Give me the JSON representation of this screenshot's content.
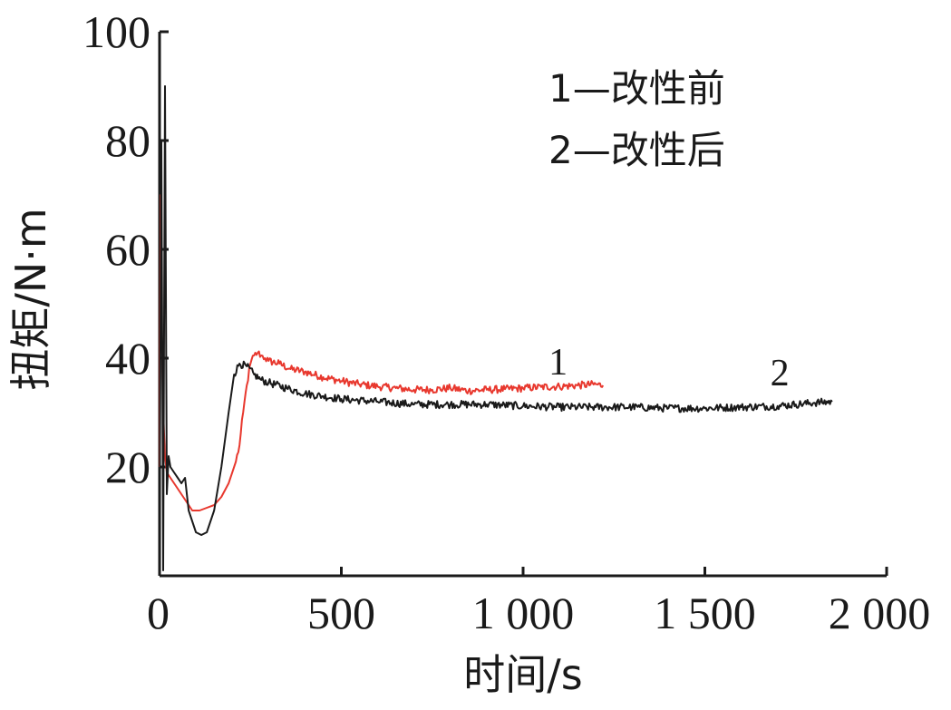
{
  "chart_data": {
    "type": "line",
    "title": "",
    "xlabel": "时间/s",
    "ylabel": "扭矩/N·m",
    "xlim": [
      0,
      2000
    ],
    "ylim": [
      0,
      100
    ],
    "x_ticks": [
      0,
      500,
      1000,
      1500,
      2000
    ],
    "x_tick_labels": [
      "0",
      "500",
      "1 000",
      "1 500",
      "2 000"
    ],
    "y_ticks": [
      20,
      40,
      60,
      80,
      100
    ],
    "y_tick_labels": [
      "20",
      "40",
      "60",
      "80",
      "100"
    ],
    "grid": false,
    "legend": {
      "position": "top-right",
      "entries": [
        "1—改性前",
        "2—改性后"
      ]
    },
    "series": [
      {
        "label": "1",
        "color": "#e8382e",
        "label_at": [
          1070,
          37
        ],
        "x": [
          0,
          3,
          6,
          10,
          15,
          20,
          30,
          50,
          70,
          90,
          110,
          130,
          150,
          170,
          190,
          210,
          220,
          230,
          240,
          250,
          260,
          270,
          280,
          290,
          300,
          330,
          360,
          400,
          450,
          500,
          550,
          600,
          650,
          700,
          750,
          800,
          850,
          900,
          950,
          1000,
          1050,
          1100,
          1150,
          1200,
          1220
        ],
        "y": [
          20,
          70,
          45,
          30,
          22,
          19,
          18,
          16,
          14,
          12,
          12,
          12.5,
          13,
          14.5,
          17,
          21,
          24,
          30,
          35,
          39,
          40.5,
          41,
          40.5,
          40,
          39.5,
          39,
          38,
          37.5,
          36.5,
          35.8,
          35.2,
          34.8,
          34.5,
          34.2,
          34.2,
          34.5,
          34,
          34.2,
          34.3,
          34.5,
          34.7,
          34.8,
          35,
          35.2,
          35
        ]
      },
      {
        "label": "2",
        "color": "#1a1a1a",
        "label_at": [
          1680,
          35
        ],
        "x": [
          0,
          5,
          10,
          15,
          20,
          25,
          30,
          40,
          50,
          60,
          70,
          80,
          90,
          100,
          115,
          130,
          150,
          170,
          190,
          205,
          220,
          240,
          260,
          280,
          300,
          350,
          400,
          450,
          500,
          600,
          700,
          800,
          900,
          1000,
          1100,
          1200,
          1300,
          1400,
          1500,
          1600,
          1700,
          1750,
          1800,
          1850
        ],
        "y": [
          5,
          80,
          1,
          90,
          15,
          22,
          20,
          19,
          18,
          17,
          18,
          12,
          10,
          8,
          7.5,
          8,
          12,
          20,
          30,
          37,
          39,
          38.5,
          37,
          36,
          35.5,
          34.5,
          33.5,
          33,
          32.5,
          32,
          31.5,
          31.5,
          31.5,
          31.2,
          31,
          31,
          31,
          30.8,
          30.8,
          31,
          31.2,
          31.5,
          31.8,
          32
        ]
      }
    ]
  }
}
